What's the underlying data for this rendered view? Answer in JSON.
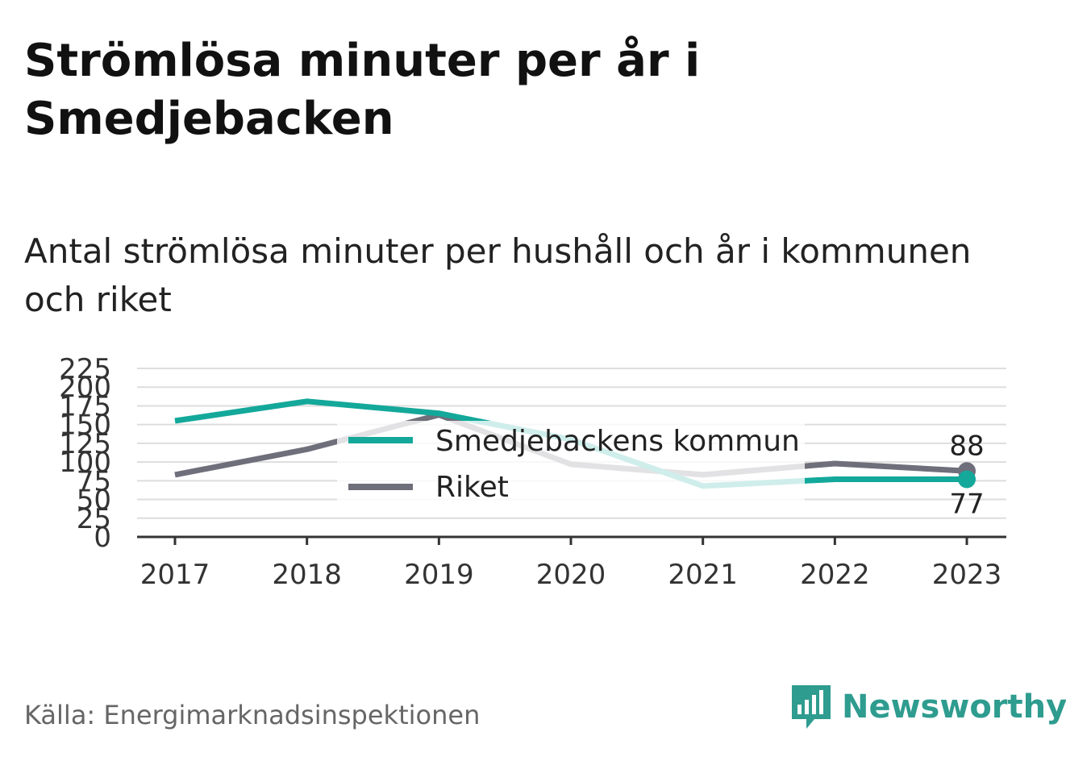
{
  "title": "Strömlösa minuter per år i Smedjebacken",
  "subtitle": "Antal strömlösa minuter per hushåll och år i kommunen och riket",
  "source": "Källa: Energimarknadsinspektionen",
  "brand": {
    "name": "Newsworthy",
    "icon": "newsworthy-logo-icon"
  },
  "colors": {
    "kommun": "#13a89a",
    "riket": "#6f6f7b",
    "grid": "#dddddd",
    "axis": "#333333"
  },
  "chart_data": {
    "type": "line",
    "x": [
      "2017",
      "2018",
      "2019",
      "2020",
      "2021",
      "2022",
      "2023"
    ],
    "ylim": [
      0,
      225
    ],
    "yticks": [
      "0",
      "25",
      "50",
      "75",
      "100",
      "125",
      "150",
      "175",
      "200",
      "225"
    ],
    "grid": true,
    "legend": "center",
    "series": [
      {
        "name": "Smedjebackens kommun",
        "values": [
          155,
          181,
          165,
          130,
          68,
          77,
          77
        ],
        "end_label": "77"
      },
      {
        "name": "Riket",
        "values": [
          83,
          117,
          163,
          97,
          83,
          98,
          88
        ],
        "end_label": "88"
      }
    ]
  }
}
